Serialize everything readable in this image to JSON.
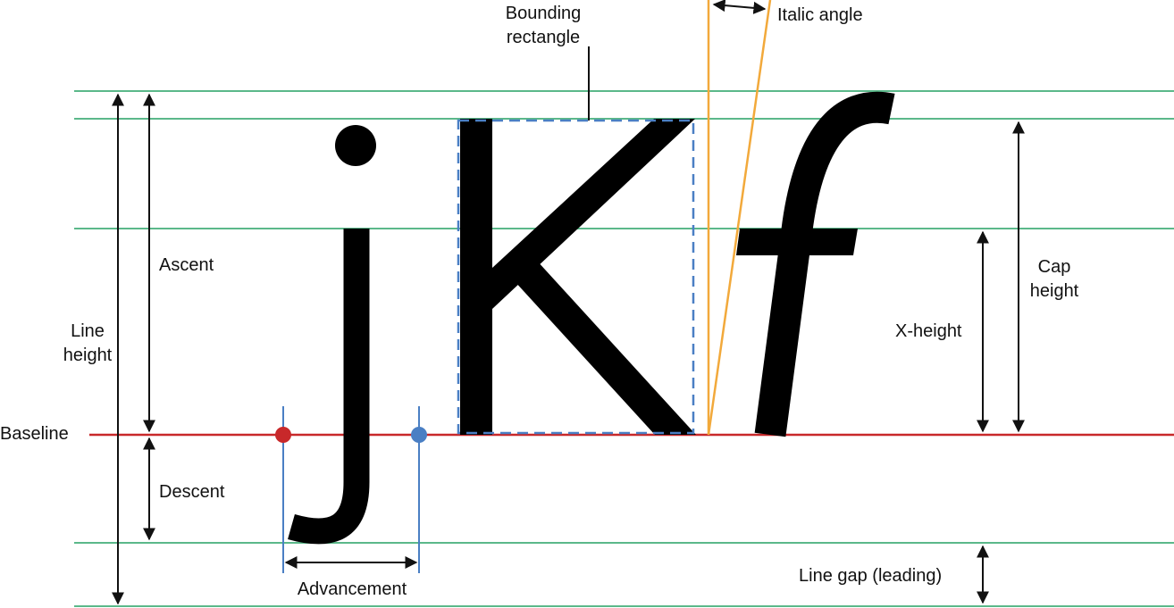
{
  "labels": {
    "bounding_rectangle": [
      "Bounding",
      "rectangle"
    ],
    "italic_angle": "Italic angle",
    "ascent": "Ascent",
    "line_height": [
      "Line",
      "height"
    ],
    "baseline": "Baseline",
    "descent": "Descent",
    "advancement": "Advancement",
    "cap_height": [
      "Cap",
      "height"
    ],
    "x_height": "X-height",
    "line_gap": "Line gap (leading)"
  },
  "glyphs": [
    "j",
    "K",
    "f"
  ],
  "colors": {
    "metric_lines": "#5bb88a",
    "baseline": "#c8282a",
    "advance_lines": "#4a7fc4",
    "bounding_box": "#4a7fc4",
    "italic_angle_lines": "#f2a93b",
    "origin_dot": "#c8282a",
    "advance_dot": "#4a7fc4",
    "glyph": "#000000"
  }
}
